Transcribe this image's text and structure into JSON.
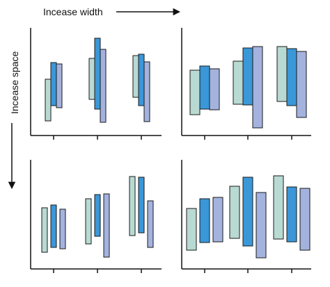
{
  "labels": {
    "width": "Incease width",
    "space": "Incease space"
  },
  "colors": {
    "axis": "#111111",
    "series": [
      "#b9d9d3",
      "#3a97d8",
      "#a4b2de"
    ]
  },
  "arrow_icons": {
    "width": "right-arrow-icon",
    "space": "down-arrow-icon"
  },
  "panels": [
    {
      "id": "narrow-tight",
      "groups": [
        [
          [
            21,
            81
          ],
          [
            43,
            105
          ],
          [
            40,
            103
          ]
        ],
        [
          [
            52,
            111
          ],
          [
            38,
            140
          ],
          [
            19,
            124
          ]
        ],
        [
          [
            55,
            115
          ],
          [
            43,
            117
          ],
          [
            20,
            106
          ]
        ]
      ]
    },
    {
      "id": "wide-tight",
      "groups": [
        [
          [
            30,
            94
          ],
          [
            38,
            100
          ],
          [
            37,
            96
          ]
        ],
        [
          [
            45,
            107
          ],
          [
            44,
            126
          ],
          [
            11,
            128
          ]
        ],
        [
          [
            49,
            128
          ],
          [
            43,
            125
          ],
          [
            26,
            121
          ]
        ]
      ]
    },
    {
      "id": "narrow-spaced",
      "groups": [
        [
          [
            24,
            88
          ],
          [
            31,
            92
          ],
          [
            29,
            86
          ]
        ],
        [
          [
            36,
            101
          ],
          [
            47,
            107
          ],
          [
            17,
            108
          ]
        ],
        [
          [
            48,
            133
          ],
          [
            52,
            132
          ],
          [
            31,
            98
          ]
        ]
      ]
    },
    {
      "id": "wide-spaced",
      "groups": [
        [
          [
            27,
            87
          ],
          [
            38,
            101
          ],
          [
            39,
            103
          ]
        ],
        [
          [
            44,
            119
          ],
          [
            33,
            132
          ],
          [
            16,
            110
          ]
        ],
        [
          [
            43,
            134
          ],
          [
            39,
            118
          ],
          [
            27,
            116
          ]
        ]
      ]
    }
  ]
}
